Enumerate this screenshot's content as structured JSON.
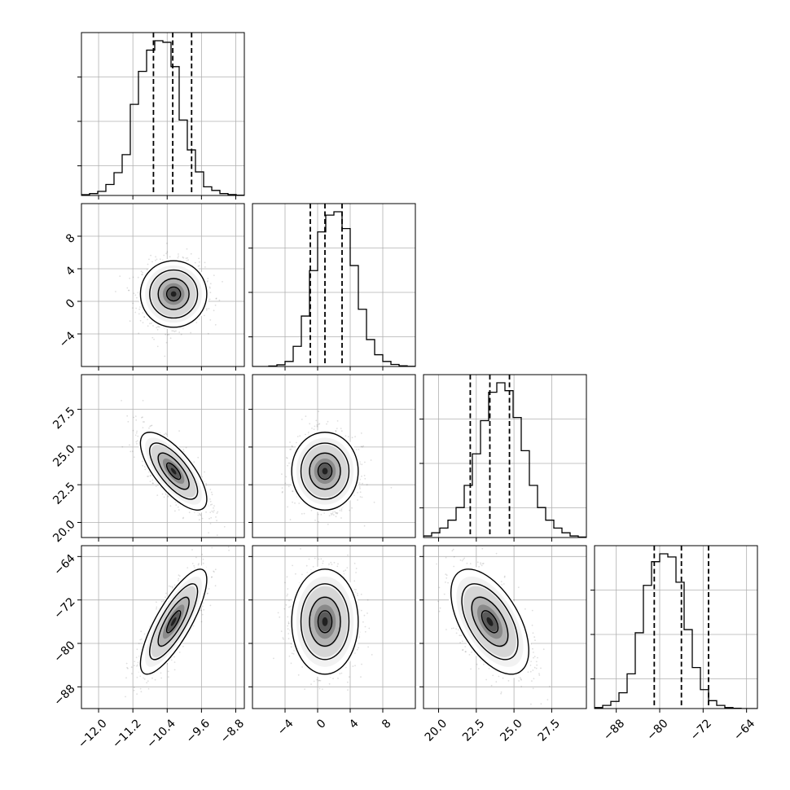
{
  "chart_data": {
    "type": "corner",
    "grid": true,
    "params": [
      {
        "range": [
          -12.4,
          -8.6
        ],
        "ticks": [
          -12.0,
          -11.2,
          -10.4,
          -9.6,
          -8.8
        ],
        "tick_labels": [
          "−12.0",
          "−11.2",
          "−10.4",
          "−9.6",
          "−8.8"
        ],
        "quantiles": [
          -10.72,
          -10.27,
          -9.83
        ],
        "hist": [
          0.005,
          0.012,
          0.026,
          0.07,
          0.145,
          0.26,
          0.58,
          0.79,
          0.925,
          0.985,
          0.975,
          0.82,
          0.48,
          0.29,
          0.15,
          0.055,
          0.032,
          0.012,
          0.006,
          0.002
        ]
      },
      {
        "range": [
          -8,
          12
        ],
        "ticks": [
          -4,
          0,
          4,
          8
        ],
        "tick_labels": [
          "−4",
          "0",
          "4",
          "8"
        ],
        "quantiles": [
          -0.9,
          0.9,
          3.0
        ],
        "hist": [
          0.0,
          0.0,
          0.003,
          0.01,
          0.03,
          0.12,
          0.3,
          0.57,
          0.8,
          0.9,
          0.92,
          0.82,
          0.6,
          0.34,
          0.16,
          0.07,
          0.03,
          0.012,
          0.004,
          0.001
        ]
      },
      {
        "range": [
          19.0,
          29.8
        ],
        "ticks": [
          20.0,
          22.5,
          25.0,
          27.5
        ],
        "tick_labels": [
          "20.0",
          "22.5",
          "25.0",
          "27.5"
        ],
        "quantiles": [
          22.1,
          23.4,
          24.7
        ],
        "hist": [
          0.01,
          0.03,
          0.06,
          0.11,
          0.19,
          0.33,
          0.53,
          0.74,
          0.92,
          0.98,
          0.93,
          0.76,
          0.55,
          0.33,
          0.19,
          0.11,
          0.06,
          0.03,
          0.01,
          0.003
        ]
      },
      {
        "range": [
          -92,
          -62
        ],
        "ticks": [
          -88,
          -80,
          -72,
          -64
        ],
        "tick_labels": [
          "−88",
          "−80",
          "−72",
          "−64"
        ],
        "quantiles": [
          -81.0,
          -76.0,
          -71.0
        ],
        "hist": [
          0.006,
          0.02,
          0.045,
          0.1,
          0.22,
          0.48,
          0.78,
          0.93,
          0.98,
          0.96,
          0.8,
          0.5,
          0.26,
          0.12,
          0.05,
          0.02,
          0.006,
          0.002,
          0.0,
          0.0
        ]
      }
    ],
    "pairs": [
      {
        "row": 1,
        "col": 0,
        "mean": [
          -10.25,
          0.9
        ],
        "sd": [
          0.36,
          1.9
        ],
        "corr": 0.0
      },
      {
        "row": 2,
        "col": 0,
        "mean": [
          -10.25,
          23.4
        ],
        "sd": [
          0.36,
          1.2
        ],
        "corr": -0.72
      },
      {
        "row": 2,
        "col": 1,
        "mean": [
          0.9,
          23.4
        ],
        "sd": [
          1.9,
          1.2
        ],
        "corr": 0.0
      },
      {
        "row": 3,
        "col": 0,
        "mean": [
          -10.25,
          -76.0
        ],
        "sd": [
          0.36,
          4.5
        ],
        "corr": 0.8
      },
      {
        "row": 3,
        "col": 1,
        "mean": [
          0.9,
          -76.0
        ],
        "sd": [
          1.9,
          4.5
        ],
        "corr": 0.0
      },
      {
        "row": 3,
        "col": 2,
        "mean": [
          23.4,
          -76.0
        ],
        "sd": [
          1.2,
          4.5
        ],
        "corr": -0.55
      }
    ],
    "contour_levels_sigma": [
      0.5,
      1.0,
      1.5,
      2.0
    ]
  }
}
